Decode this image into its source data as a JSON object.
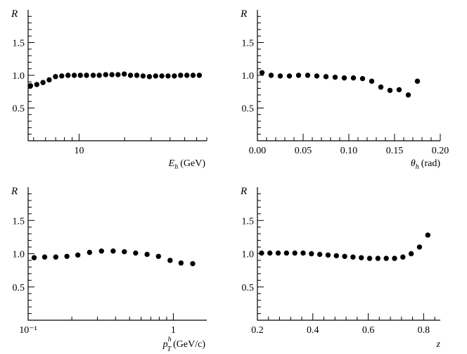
{
  "chart_data": [
    {
      "type": "scatter",
      "panel": "top-left",
      "ylabel": "R",
      "xlabel": {
        "sym": "E",
        "sub": "h",
        "unit": "(GeV)"
      },
      "xscale": "log",
      "xlim": [
        4.6,
        70
      ],
      "ylim": [
        0,
        2
      ],
      "y_ticklabels": [
        "0.5",
        "1.0",
        "1.5"
      ],
      "y_tickvalues": [
        0.5,
        1.0,
        1.5
      ],
      "x_ticklabels": [
        "10"
      ],
      "x_tickvalues": [
        10
      ],
      "x": [
        4.77,
        5.25,
        5.77,
        6.34,
        6.98,
        7.68,
        8.45,
        9.29,
        10.2,
        11.2,
        12.4,
        13.6,
        15.0,
        16.5,
        18.1,
        19.9,
        21.9,
        24.1,
        26.5,
        29.2,
        32.1,
        35.3,
        38.8,
        42.7,
        47.0,
        51.7,
        56.8,
        62.5
      ],
      "y": [
        0.84,
        0.86,
        0.89,
        0.93,
        0.98,
        0.99,
        1.0,
        1.0,
        1.0,
        1.0,
        1.0,
        1.0,
        1.01,
        1.01,
        1.01,
        1.02,
        1.0,
        1.0,
        0.99,
        0.98,
        0.99,
        0.99,
        0.99,
        0.99,
        1.0,
        1.0,
        1.0,
        1.0
      ]
    },
    {
      "type": "scatter",
      "panel": "top-right",
      "ylabel": "R",
      "xlabel": {
        "sym": "θ",
        "sub": "h",
        "unit": "(rad)"
      },
      "xscale": "linear",
      "xlim": [
        0,
        0.2
      ],
      "ylim": [
        0,
        2
      ],
      "y_ticklabels": [
        "0.5",
        "1.0",
        "1.5"
      ],
      "y_tickvalues": [
        0.5,
        1.0,
        1.5
      ],
      "x_ticklabels": [
        "0.00",
        "0.05",
        "0.10",
        "0.15",
        "0.20"
      ],
      "x_tickvalues": [
        0,
        0.05,
        0.1,
        0.15,
        0.2
      ],
      "x": [
        0.005,
        0.015,
        0.025,
        0.035,
        0.045,
        0.055,
        0.065,
        0.075,
        0.085,
        0.095,
        0.105,
        0.115,
        0.125,
        0.135,
        0.145,
        0.155,
        0.165,
        0.175
      ],
      "y": [
        1.04,
        1.0,
        0.99,
        0.99,
        1.0,
        1.0,
        0.99,
        0.98,
        0.97,
        0.96,
        0.96,
        0.95,
        0.91,
        0.82,
        0.77,
        0.78,
        0.7,
        0.91
      ]
    },
    {
      "type": "scatter",
      "panel": "bottom-left",
      "ylabel": "R",
      "xlabel": {
        "sym": "p",
        "sub": "T",
        "sup": "h",
        "unit": "(GeV/c)"
      },
      "xscale": "log",
      "xlim": [
        0.1,
        1.7
      ],
      "ylim": [
        0,
        2
      ],
      "y_ticklabels": [
        "0.5",
        "1.0",
        "1.5"
      ],
      "y_tickvalues": [
        0.5,
        1.0,
        1.5
      ],
      "x_ticklabels": [
        "10⁻¹",
        "1"
      ],
      "x_tickvalues": [
        0.1,
        1
      ],
      "x": [
        0.11,
        0.13,
        0.155,
        0.185,
        0.22,
        0.265,
        0.32,
        0.385,
        0.46,
        0.55,
        0.66,
        0.79,
        0.95,
        1.13,
        1.36
      ],
      "y": [
        0.94,
        0.95,
        0.95,
        0.96,
        0.98,
        1.02,
        1.04,
        1.04,
        1.03,
        1.01,
        0.99,
        0.96,
        0.9,
        0.86,
        0.85
      ]
    },
    {
      "type": "scatter",
      "panel": "bottom-right",
      "ylabel": "R",
      "xlabel": {
        "sym": "z"
      },
      "xscale": "linear",
      "xlim": [
        0.2,
        0.86
      ],
      "ylim": [
        0,
        2
      ],
      "y_ticklabels": [
        "0.5",
        "1.0",
        "1.5"
      ],
      "y_tickvalues": [
        0.5,
        1.0,
        1.5
      ],
      "x_ticklabels": [
        "0.2",
        "0.4",
        "0.6",
        "0.8"
      ],
      "x_tickvalues": [
        0.2,
        0.4,
        0.6,
        0.8
      ],
      "x": [
        0.215,
        0.245,
        0.275,
        0.305,
        0.335,
        0.365,
        0.395,
        0.425,
        0.455,
        0.485,
        0.515,
        0.545,
        0.575,
        0.605,
        0.635,
        0.665,
        0.695,
        0.725,
        0.755,
        0.785,
        0.815
      ],
      "y": [
        1.01,
        1.01,
        1.01,
        1.01,
        1.01,
        1.01,
        1.0,
        0.99,
        0.98,
        0.97,
        0.96,
        0.95,
        0.94,
        0.93,
        0.93,
        0.93,
        0.93,
        0.95,
        1.0,
        1.1,
        1.28
      ]
    }
  ]
}
